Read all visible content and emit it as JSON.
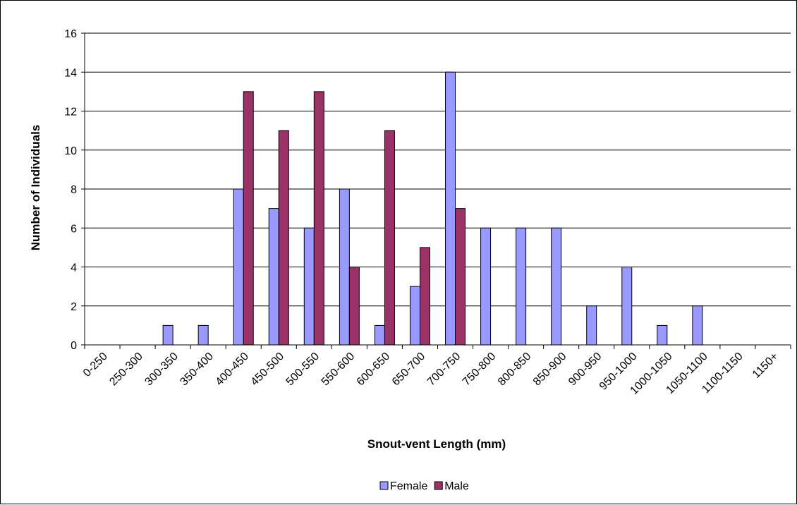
{
  "chart_data": {
    "type": "bar",
    "title": "",
    "xlabel": "Snout-vent Length (mm)",
    "ylabel": "Number of Individuals",
    "ylim": [
      0,
      16
    ],
    "yticks": [
      "0",
      "2",
      "4",
      "6",
      "8",
      "10",
      "12",
      "14",
      "16"
    ],
    "grid": true,
    "legend_position": "bottom",
    "categories": [
      "0-250",
      "250-300",
      "300-350",
      "350-400",
      "400-450",
      "450-500",
      "500-550",
      "550-600",
      "600-650",
      "650-700",
      "700-750",
      "750-800",
      "800-850",
      "850-900",
      "900-950",
      "950-1000",
      "1000-1050",
      "1050-1100",
      "1100-1150",
      "1150+"
    ],
    "series": [
      {
        "name": "Female",
        "color": "#9999FF",
        "values": [
          0,
          0,
          1,
          1,
          8,
          7,
          6,
          8,
          1,
          3,
          14,
          6,
          6,
          6,
          2,
          4,
          1,
          2,
          0,
          0
        ]
      },
      {
        "name": "Male",
        "color": "#993366",
        "values": [
          0,
          0,
          0,
          0,
          13,
          11,
          13,
          4,
          11,
          5,
          7,
          0,
          0,
          0,
          0,
          0,
          0,
          0,
          0,
          0
        ]
      }
    ]
  }
}
